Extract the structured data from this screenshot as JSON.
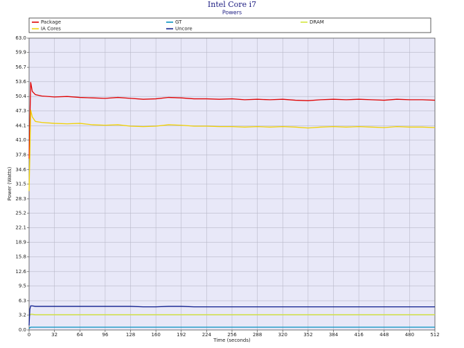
{
  "chart_data": {
    "type": "line",
    "title": "Intel Core i7",
    "subtitle": "Powers",
    "x_label": "Time (seconds)",
    "y_label": "Power (Watts)",
    "x": [
      0,
      1,
      2,
      4,
      8,
      16,
      32,
      48,
      64,
      80,
      96,
      112,
      128,
      144,
      160,
      176,
      192,
      208,
      224,
      240,
      256,
      272,
      288,
      304,
      320,
      336,
      352,
      368,
      384,
      400,
      416,
      432,
      448,
      464,
      480,
      496,
      512
    ],
    "series": [
      {
        "name": "Package",
        "color": "#e00000",
        "values": [
          37,
          45,
          53.5,
          51.5,
          50.8,
          50.5,
          50.3,
          50.4,
          50.2,
          50.1,
          50.0,
          50.2,
          50.0,
          49.8,
          49.9,
          50.2,
          50.1,
          49.9,
          49.9,
          49.8,
          49.9,
          49.7,
          49.8,
          49.7,
          49.8,
          49.6,
          49.5,
          49.7,
          49.8,
          49.7,
          49.8,
          49.7,
          49.6,
          49.8,
          49.7,
          49.7,
          49.6
        ]
      },
      {
        "name": "GT",
        "color": "#0090c0",
        "values": [
          0.3,
          0.5,
          0.6,
          0.6,
          0.6,
          0.6,
          0.6,
          0.6,
          0.6,
          0.6,
          0.6,
          0.6,
          0.6,
          0.6,
          0.6,
          0.6,
          0.6,
          0.6,
          0.6,
          0.6,
          0.6,
          0.6,
          0.6,
          0.6,
          0.6,
          0.6,
          0.6,
          0.6,
          0.6,
          0.6,
          0.6,
          0.6,
          0.6,
          0.6,
          0.6,
          0.6,
          0.6
        ]
      },
      {
        "name": "DRAM",
        "color": "#d4e63c",
        "values": [
          3.0,
          3.2,
          3.4,
          3.4,
          3.3,
          3.3,
          3.3,
          3.3,
          3.3,
          3.3,
          3.3,
          3.3,
          3.3,
          3.3,
          3.3,
          3.3,
          3.3,
          3.3,
          3.3,
          3.3,
          3.3,
          3.3,
          3.3,
          3.3,
          3.3,
          3.3,
          3.3,
          3.3,
          3.3,
          3.3,
          3.3,
          3.3,
          3.3,
          3.3,
          3.3,
          3.3,
          3.3
        ]
      },
      {
        "name": "IA Cores",
        "color": "#f0d000",
        "values": [
          30,
          38,
          47.5,
          46,
          45,
          44.8,
          44.6,
          44.5,
          44.6,
          44.3,
          44.2,
          44.3,
          44.0,
          43.9,
          44.0,
          44.3,
          44.2,
          44.0,
          44.0,
          43.9,
          43.9,
          43.8,
          43.9,
          43.8,
          43.9,
          43.8,
          43.6,
          43.8,
          43.9,
          43.8,
          43.9,
          43.8,
          43.7,
          43.9,
          43.8,
          43.8,
          43.7
        ]
      },
      {
        "name": "Uncore",
        "color": "#0a1a8c",
        "values": [
          1.0,
          4.5,
          5.2,
          5.2,
          5.1,
          5.1,
          5.1,
          5.1,
          5.1,
          5.1,
          5.1,
          5.1,
          5.1,
          5.0,
          5.0,
          5.1,
          5.1,
          5.0,
          5.0,
          5.0,
          5.0,
          5.0,
          5.0,
          5.0,
          5.0,
          5.0,
          5.0,
          5.0,
          5.0,
          5.0,
          5.0,
          5.0,
          5.0,
          5.0,
          5.0,
          5.0,
          5.0
        ]
      }
    ],
    "xlim": [
      0,
      512
    ],
    "xticks": [
      0,
      32,
      64,
      96,
      128,
      160,
      192,
      224,
      256,
      288,
      320,
      352,
      384,
      416,
      448,
      480,
      512
    ],
    "ylim": [
      0,
      63
    ],
    "yticks": [
      {
        "value": 0,
        "label": "0.0"
      },
      3.2,
      6.3,
      9.5,
      12.6,
      15.8,
      18.9,
      22.1,
      25.2,
      28.3,
      31.5,
      34.6,
      37.8,
      {
        "value": 41,
        "label": "41.0"
      },
      44.1,
      47.3,
      50.4,
      53.6,
      56.7,
      59.9,
      {
        "value": 63,
        "label": "63.0"
      }
    ],
    "grid": true
  }
}
